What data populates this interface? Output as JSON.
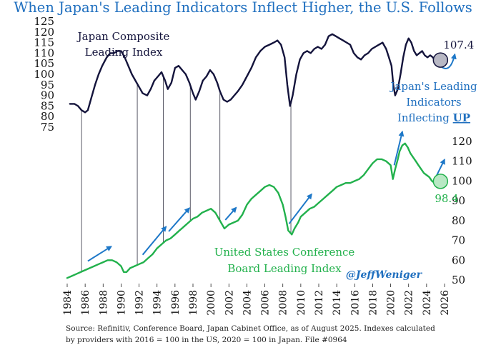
{
  "chart_data": {
    "type": "line",
    "title": "When Japan's Leading Indicators Inflect Higher, the U.S. Follows",
    "x_ticks": [
      "1984",
      "1986",
      "1988",
      "1990",
      "1992",
      "1994",
      "1996",
      "1998",
      "2000",
      "2002",
      "2004",
      "2006",
      "2008",
      "2010",
      "2012",
      "2014",
      "2016",
      "2018",
      "2020",
      "2022",
      "2024",
      "2026"
    ],
    "x_range": [
      1984,
      2026
    ],
    "japan_axis": {
      "side": "left",
      "range": [
        75,
        125
      ],
      "ticks": [
        "125",
        "120",
        "115",
        "110",
        "105",
        "100",
        "95",
        "90",
        "85",
        "80",
        "75"
      ]
    },
    "us_axis": {
      "side": "right",
      "range": [
        50,
        120
      ],
      "ticks": [
        "120",
        "110",
        "100",
        "90",
        "80",
        "70",
        "60",
        "50"
      ]
    },
    "series": [
      {
        "name": "Japan Composite Leading Index",
        "label_lines": [
          "Japan Composite",
          "Leading Index"
        ],
        "color": "#14143c",
        "axis": "left",
        "x": [
          1984.3,
          1984.8,
          1985.2,
          1985.6,
          1986.0,
          1986.3,
          1986.7,
          1987.1,
          1987.5,
          1987.9,
          1988.4,
          1988.8,
          1989.2,
          1989.6,
          1990.0,
          1990.4,
          1990.8,
          1991.2,
          1991.6,
          1992.0,
          1992.4,
          1992.9,
          1993.3,
          1993.7,
          1994.1,
          1994.5,
          1994.9,
          1995.2,
          1995.6,
          1996.0,
          1996.4,
          1996.8,
          1997.2,
          1997.6,
          1998.0,
          1998.3,
          1998.7,
          1999.1,
          1999.5,
          1999.9,
          2000.3,
          2000.7,
          2001.0,
          2001.4,
          2001.8,
          2002.2,
          2002.6,
          2003.0,
          2003.5,
          2004.0,
          2004.5,
          2005.0,
          2005.5,
          2006.0,
          2006.5,
          2007.0,
          2007.4,
          2007.8,
          2008.2,
          2008.5,
          2008.8,
          2009.1,
          2009.5,
          2009.9,
          2010.3,
          2010.7,
          2011.1,
          2011.5,
          2011.9,
          2012.3,
          2012.7,
          2013.1,
          2013.5,
          2013.9,
          2014.3,
          2014.7,
          2015.1,
          2015.5,
          2015.9,
          2016.3,
          2016.7,
          2017.1,
          2017.5,
          2017.9,
          2018.3,
          2018.7,
          2019.1,
          2019.5,
          2019.8,
          2020.1,
          2020.3,
          2020.5,
          2020.8,
          2021.1,
          2021.4,
          2021.7,
          2022.0,
          2022.3,
          2022.6,
          2022.9,
          2023.2,
          2023.5,
          2023.8,
          2024.1,
          2024.4,
          2024.7,
          2025.0,
          2025.3,
          2025.55
        ],
        "values": [
          86,
          86,
          85,
          83,
          82,
          83,
          89,
          95,
          100,
          104,
          108,
          110,
          110,
          111,
          111,
          108,
          104,
          100,
          97,
          94,
          91,
          90,
          93,
          97,
          99,
          101,
          97,
          93,
          96,
          103,
          104,
          102,
          100,
          96,
          91,
          88,
          92,
          97,
          99,
          102,
          100,
          96,
          92,
          88,
          87,
          88,
          90,
          92,
          95,
          99,
          103,
          108,
          111,
          113,
          114,
          115,
          116,
          114,
          108,
          95,
          85,
          90,
          100,
          107,
          110,
          111,
          110,
          112,
          113,
          112,
          114,
          118,
          119,
          118,
          117,
          116,
          115,
          114,
          110,
          108,
          107,
          109,
          110,
          112,
          113,
          114,
          115,
          112,
          108,
          104,
          95,
          90,
          93,
          100,
          108,
          114,
          117,
          115,
          111,
          109,
          110,
          111,
          109,
          108,
          109,
          108,
          106,
          104,
          107.4
        ],
        "end_label": "107.4"
      },
      {
        "name": "United States Conference Board Leading Index",
        "label_lines": [
          "United States Conference",
          "Board Leading Index"
        ],
        "color": "#22b14c",
        "axis": "right",
        "x": [
          1984.0,
          1984.5,
          1985.0,
          1985.5,
          1986.0,
          1986.5,
          1987.0,
          1987.5,
          1988.0,
          1988.5,
          1989.0,
          1989.5,
          1990.0,
          1990.3,
          1990.6,
          1991.0,
          1991.5,
          1992.0,
          1992.5,
          1993.0,
          1993.5,
          1994.0,
          1994.5,
          1995.0,
          1995.5,
          1996.0,
          1996.5,
          1997.0,
          1997.5,
          1998.0,
          1998.5,
          1999.0,
          1999.5,
          2000.0,
          2000.5,
          2001.0,
          2001.5,
          2002.0,
          2002.5,
          2003.0,
          2003.5,
          2004.0,
          2004.5,
          2005.0,
          2005.5,
          2006.0,
          2006.5,
          2007.0,
          2007.5,
          2008.0,
          2008.3,
          2008.6,
          2009.0,
          2009.3,
          2009.7,
          2010.0,
          2010.5,
          2011.0,
          2011.5,
          2012.0,
          2012.5,
          2013.0,
          2013.5,
          2014.0,
          2014.5,
          2015.0,
          2015.5,
          2016.0,
          2016.5,
          2017.0,
          2017.5,
          2018.0,
          2018.5,
          2019.0,
          2019.5,
          2020.0,
          2020.25,
          2020.5,
          2020.8,
          2021.0,
          2021.3,
          2021.6,
          2021.9,
          2022.2,
          2022.5,
          2022.8,
          2023.1,
          2023.4,
          2023.7,
          2024.0,
          2024.3,
          2024.6,
          2024.9,
          2025.2,
          2025.55
        ],
        "values": [
          51,
          52,
          53,
          54,
          55,
          56,
          57,
          58,
          59,
          60,
          60,
          59,
          57,
          54,
          54,
          56,
          57,
          58,
          59,
          61,
          63,
          66,
          68,
          70,
          71,
          73,
          75,
          77,
          79,
          81,
          82,
          84,
          85,
          86,
          84,
          80,
          76,
          78,
          79,
          80,
          83,
          88,
          91,
          93,
          95,
          97,
          98,
          97,
          94,
          88,
          82,
          75,
          73,
          76,
          79,
          82,
          84,
          86,
          87,
          89,
          91,
          93,
          95,
          97,
          98,
          99,
          99,
          100,
          101,
          103,
          106,
          109,
          111,
          111,
          110,
          108,
          101,
          106,
          111,
          115,
          118,
          119,
          117,
          114,
          112,
          110,
          108,
          106,
          104,
          103,
          102,
          100,
          99,
          98.5,
          98.4
        ],
        "end_label": "98.4"
      }
    ],
    "inflection_lines_x": [
      1985.6,
      1991.8,
      1994.7,
      1997.7,
      2001.0,
      2008.9
    ],
    "annotation_japan": [
      "Japan's Leading",
      "Indicators",
      "Inflecting ",
      "UP"
    ],
    "handle": "@JeffWeniger",
    "source_lines": [
      "Source: Refinitiv, Conference Board, Japan Cabinet Office, as of August 2025. Indexes calculated",
      "by providers with 2016 = 100 in the US,  2020 = 100 in Japan. File #0964"
    ],
    "colors": {
      "title": "#1f6fbf",
      "japan_line": "#14143c",
      "us_line": "#22b14c",
      "arrow": "#1e78c8",
      "connector": "#303040",
      "handle": "#1f6fbf"
    }
  }
}
